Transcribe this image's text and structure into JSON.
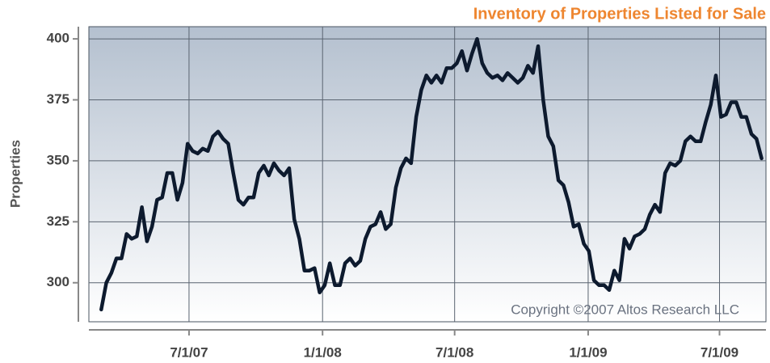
{
  "chart_data": {
    "type": "line",
    "title": "Inventory of Properties Listed for Sale",
    "ylabel": "Properties",
    "annotation": "Copyright ©2007 Altos Research LLC",
    "x": [
      "2007-03-02",
      "2007-03-09",
      "2007-03-16",
      "2007-03-23",
      "2007-03-30",
      "2007-04-06",
      "2007-04-13",
      "2007-04-20",
      "2007-04-27",
      "2007-05-04",
      "2007-05-11",
      "2007-05-18",
      "2007-05-25",
      "2007-06-01",
      "2007-06-08",
      "2007-06-15",
      "2007-06-22",
      "2007-06-29",
      "2007-07-06",
      "2007-07-13",
      "2007-07-20",
      "2007-07-27",
      "2007-08-03",
      "2007-08-10",
      "2007-08-17",
      "2007-08-24",
      "2007-08-31",
      "2007-09-07",
      "2007-09-14",
      "2007-09-21",
      "2007-09-28",
      "2007-10-05",
      "2007-10-12",
      "2007-10-19",
      "2007-10-26",
      "2007-11-02",
      "2007-11-09",
      "2007-11-16",
      "2007-11-23",
      "2007-11-30",
      "2007-12-07",
      "2007-12-14",
      "2007-12-21",
      "2007-12-28",
      "2008-01-04",
      "2008-01-11",
      "2008-01-18",
      "2008-01-25",
      "2008-02-01",
      "2008-02-08",
      "2008-02-15",
      "2008-02-22",
      "2008-02-29",
      "2008-03-07",
      "2008-03-14",
      "2008-03-21",
      "2008-03-28",
      "2008-04-04",
      "2008-04-11",
      "2008-04-18",
      "2008-04-25",
      "2008-05-02",
      "2008-05-09",
      "2008-05-16",
      "2008-05-23",
      "2008-05-30",
      "2008-06-06",
      "2008-06-13",
      "2008-06-20",
      "2008-06-27",
      "2008-07-04",
      "2008-07-11",
      "2008-07-18",
      "2008-07-25",
      "2008-08-01",
      "2008-08-08",
      "2008-08-15",
      "2008-08-22",
      "2008-08-29",
      "2008-09-05",
      "2008-09-12",
      "2008-09-19",
      "2008-09-26",
      "2008-10-03",
      "2008-10-10",
      "2008-10-17",
      "2008-10-24",
      "2008-10-31",
      "2008-11-07",
      "2008-11-14",
      "2008-11-21",
      "2008-11-28",
      "2008-12-05",
      "2008-12-12",
      "2008-12-19",
      "2008-12-26",
      "2009-01-02",
      "2009-01-09",
      "2009-01-16",
      "2009-01-23",
      "2009-01-30",
      "2009-02-06",
      "2009-02-13",
      "2009-02-20",
      "2009-02-27",
      "2009-03-06",
      "2009-03-13",
      "2009-03-20",
      "2009-03-27",
      "2009-04-03",
      "2009-04-10",
      "2009-04-17",
      "2009-04-24",
      "2009-05-01",
      "2009-05-08",
      "2009-05-15",
      "2009-05-22",
      "2009-05-29",
      "2009-06-05",
      "2009-06-12",
      "2009-06-19",
      "2009-06-26",
      "2009-07-03",
      "2009-07-10",
      "2009-07-17",
      "2009-07-24",
      "2009-07-31",
      "2009-08-07",
      "2009-08-14",
      "2009-08-21",
      "2009-08-28"
    ],
    "series": [
      {
        "name": "Properties",
        "color": "#0d1a2e",
        "values": [
          289,
          300,
          304,
          310,
          310,
          320,
          318,
          319,
          331,
          317,
          323,
          334,
          335,
          345,
          345,
          334,
          341,
          357,
          354,
          353,
          355,
          354,
          360,
          362,
          359,
          357,
          345,
          334,
          332,
          335,
          335,
          345,
          348,
          344,
          349,
          346,
          344,
          347,
          326,
          318,
          305,
          305,
          306,
          296,
          299,
          308,
          299,
          299,
          308,
          310,
          307,
          309,
          318,
          323,
          324,
          329,
          322,
          324,
          339,
          347,
          351,
          349,
          368,
          379,
          385,
          382,
          385,
          382,
          388,
          388,
          390,
          395,
          387,
          394,
          400,
          390,
          386,
          384,
          385,
          383,
          386,
          384,
          382,
          384,
          389,
          386,
          397,
          375,
          360,
          356,
          342,
          340,
          333,
          323,
          324,
          316,
          313,
          301,
          299,
          299,
          297,
          305,
          301,
          318,
          314,
          319,
          320,
          322,
          328,
          332,
          329,
          345,
          349,
          348,
          350,
          358,
          360,
          358,
          358,
          366,
          373,
          385,
          368,
          369,
          374,
          374,
          368,
          368,
          361,
          359,
          351
        ]
      }
    ],
    "xlim": [
      "2007-02-13",
      "2009-09-03"
    ],
    "xticks": [
      {
        "value": "2007-07-01",
        "label": "7/1/07"
      },
      {
        "value": "2008-01-01",
        "label": "1/1/08"
      },
      {
        "value": "2008-07-01",
        "label": "7/1/08"
      },
      {
        "value": "2009-01-01",
        "label": "1/1/09"
      },
      {
        "value": "2009-07-01",
        "label": "7/1/09"
      }
    ],
    "ylim": [
      284,
      405
    ],
    "yticks": [
      300,
      325,
      350,
      375,
      400
    ],
    "grid": true
  }
}
